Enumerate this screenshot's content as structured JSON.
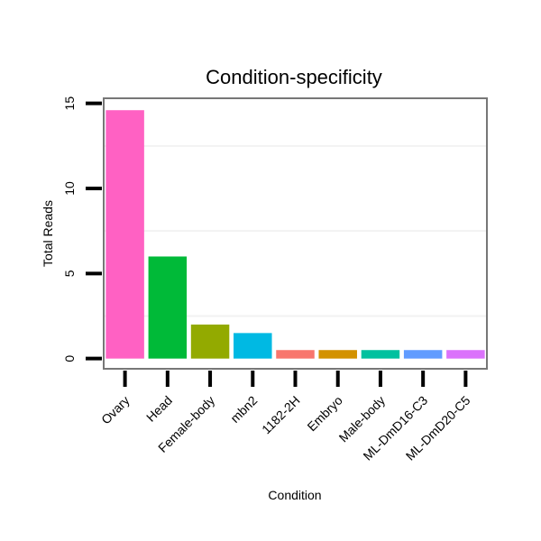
{
  "chart_data": {
    "type": "bar",
    "title": "Condition-specificity",
    "xlabel": "Condition",
    "ylabel": "Total Reads",
    "categories": [
      "Ovary",
      "Head",
      "Female-body",
      "mbn2",
      "1182-2H",
      "Embryo",
      "Male-body",
      "ML-DmD16-C3",
      "ML-DmD20-C5"
    ],
    "values": [
      14.6,
      6.0,
      2.0,
      1.5,
      0.5,
      0.5,
      0.5,
      0.5,
      0.5
    ],
    "colors": [
      "#FF61C3",
      "#00BA38",
      "#93AA00",
      "#00B9E3",
      "#F8766D",
      "#D39200",
      "#00C19F",
      "#619CFF",
      "#DB72FB"
    ],
    "ylim": [
      -0.6,
      15.3
    ],
    "yticks": [
      0,
      5,
      10,
      15
    ],
    "grid": true,
    "legend": "none"
  }
}
